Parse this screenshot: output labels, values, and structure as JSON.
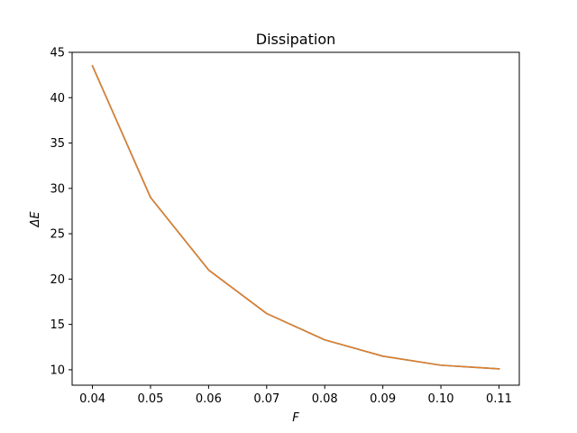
{
  "chart_data": {
    "type": "line",
    "title": "Dissipation",
    "xlabel": "F",
    "ylabel": "ΔE",
    "xlim": [
      0.0365,
      0.1135
    ],
    "ylim": [
      8.3,
      45.0
    ],
    "xticks": [
      0.04,
      0.05,
      0.06,
      0.07,
      0.08,
      0.09,
      0.1,
      0.11
    ],
    "xtick_labels": [
      "0.04",
      "0.05",
      "0.06",
      "0.07",
      "0.08",
      "0.09",
      "0.10",
      "0.11"
    ],
    "yticks": [
      10,
      15,
      20,
      25,
      30,
      35,
      40,
      45
    ],
    "ytick_labels": [
      "10",
      "15",
      "20",
      "25",
      "30",
      "35",
      "40",
      "45"
    ],
    "grid": false,
    "series": [
      {
        "color": "#1f77b4",
        "x": [
          0.04,
          0.05,
          0.06,
          0.07,
          0.08,
          0.09,
          0.1,
          0.11
        ],
        "y": [
          43.5,
          29.0,
          21.0,
          16.2,
          13.3,
          11.5,
          10.5,
          10.1
        ]
      },
      {
        "color": "#e07f2a",
        "x": [
          0.04,
          0.05,
          0.06,
          0.07,
          0.08,
          0.09,
          0.1,
          0.11
        ],
        "y": [
          43.5,
          29.0,
          21.0,
          16.2,
          13.3,
          11.5,
          10.5,
          10.1
        ]
      }
    ]
  }
}
